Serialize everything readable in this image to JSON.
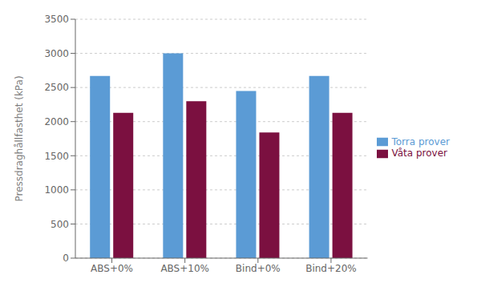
{
  "chart_data": {
    "type": "bar",
    "ylabel": "Pressdraghållfasthet (kPa)",
    "categories": [
      "ABS+0%",
      "ABS+10%",
      "Bind+0%",
      "Bind+20%"
    ],
    "series": [
      {
        "name": "Torra prover",
        "color": "#5B9BD5",
        "values": [
          2670,
          3000,
          2450,
          2670
        ]
      },
      {
        "name": "Våta prover",
        "color": "#7B1040",
        "values": [
          2130,
          2300,
          1840,
          2130
        ]
      }
    ],
    "ylim": [
      0,
      3500
    ],
    "yticks": [
      0,
      500,
      1000,
      1500,
      2000,
      2500,
      3000,
      3500
    ],
    "grid": true,
    "legend": "right"
  }
}
